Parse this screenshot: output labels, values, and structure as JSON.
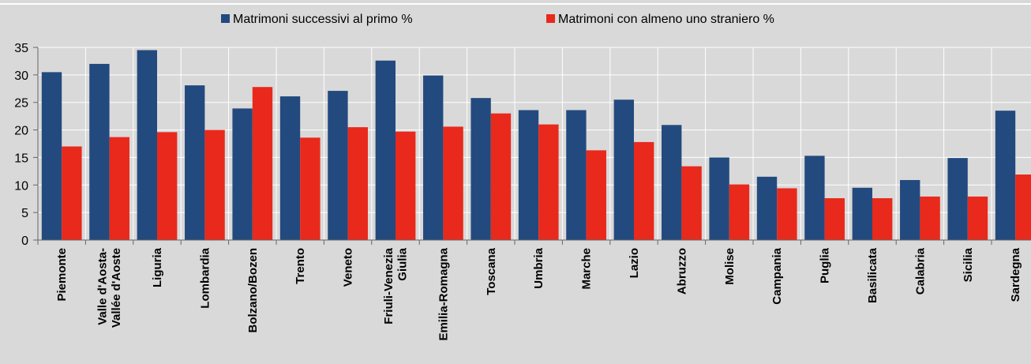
{
  "chart_data": {
    "type": "bar",
    "categories": [
      "Piemonte",
      "Valle d'Aosta-\nVallée d'Aoste",
      "Liguria",
      "Lombardia",
      "Bolzano/Bozen",
      "Trento",
      "Veneto",
      "Friuli-Venezia\nGiulia",
      "Emilia-Romagna",
      "Toscana",
      "Umbria",
      "Marche",
      "Lazio",
      "Abruzzo",
      "Molise",
      "Campania",
      "Puglia",
      "Basilicata",
      "Calabria",
      "Sicilia",
      "Sardegna"
    ],
    "series": [
      {
        "name": "Matrimoni successivi al primo %",
        "color": "#234a7e",
        "values": [
          30.5,
          32,
          34.5,
          28.1,
          23.9,
          26.1,
          27.1,
          32.6,
          29.9,
          25.8,
          23.6,
          23.6,
          25.5,
          20.9,
          15,
          11.5,
          15.3,
          9.5,
          10.9,
          14.9,
          23.5
        ]
      },
      {
        "name": "Matrimoni con almeno uno straniero %",
        "color": "#e8291c",
        "values": [
          17,
          18.7,
          19.6,
          20,
          27.8,
          18.6,
          20.5,
          19.7,
          20.6,
          23,
          21,
          16.3,
          17.8,
          13.4,
          10.1,
          9.4,
          7.6,
          7.6,
          7.9,
          7.9,
          11.9
        ]
      }
    ],
    "ylim": [
      0,
      35
    ],
    "yticks": [
      0,
      5,
      10,
      15,
      20,
      25,
      30,
      35
    ],
    "grid": true
  }
}
